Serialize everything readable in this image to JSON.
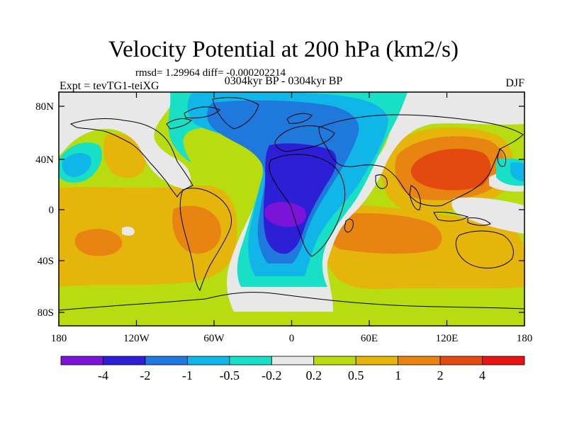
{
  "header": {
    "title": "Velocity Potential at 200 hPa (km2/s)",
    "stats": "rmsd= 1.29964 diff= -0.000202214",
    "period": "0304kyr BP - 0304kyr BP",
    "experiment": "Expt = tevTG1-teiXG",
    "season": "DJF"
  },
  "axes": {
    "lat_labels": [
      "80N",
      "40N",
      "0",
      "40S",
      "80S"
    ],
    "lon_labels": [
      "180",
      "120W",
      "60W",
      "0",
      "60E",
      "120E",
      "180"
    ]
  },
  "colorbar": {
    "labels": [
      "-4",
      "-2",
      "-1",
      "-0.5",
      "-0.2",
      "0.2",
      "0.5",
      "1",
      "2",
      "4"
    ],
    "colors": [
      "#7a14d8",
      "#2d1fd6",
      "#1f79dc",
      "#10b6e8",
      "#17e0c7",
      "#e8e8e8",
      "#b8dc10",
      "#e6b50c",
      "#e88512",
      "#e44a10",
      "#e81414"
    ]
  }
}
